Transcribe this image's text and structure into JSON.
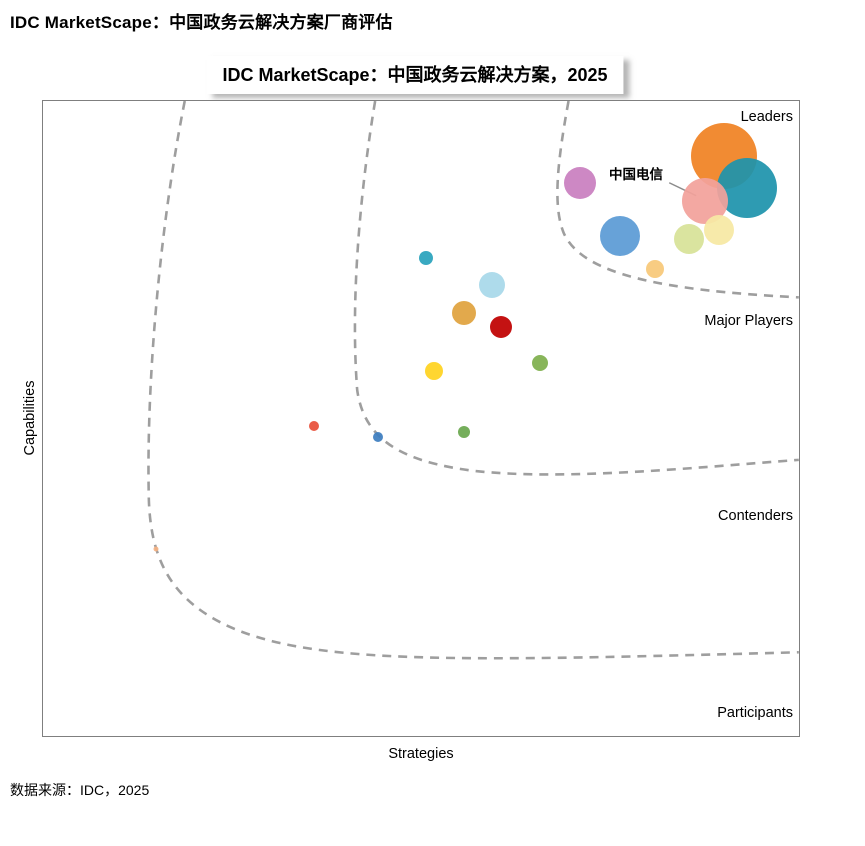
{
  "header": {
    "title": "IDC MarketScape：中国政务云解决方案厂商评估"
  },
  "footer": {
    "source": "数据来源：IDC，2025"
  },
  "chart_data": {
    "type": "scatter",
    "title": "IDC MarketScape：中国政务云解决方案，2025",
    "xlabel": "Strategies",
    "ylabel": "Capabilities",
    "xlim": [
      0,
      100
    ],
    "ylim": [
      0,
      100
    ],
    "grid": false,
    "regions": [
      "Leaders",
      "Major Players",
      "Contenders",
      "Participants"
    ],
    "boundary_color": "#9e9e9e",
    "points": [
      {
        "x": 90.1,
        "y": 91.4,
        "r": 33,
        "color": "#F08223"
      },
      {
        "x": 93.1,
        "y": 86.3,
        "r": 30,
        "color": "#1E93AC"
      },
      {
        "label": "中国电信",
        "x": 87.5,
        "y": 84.3,
        "r": 23,
        "color": "#F2A19B"
      },
      {
        "x": 85.5,
        "y": 78.3,
        "r": 15,
        "color": "#D7E298"
      },
      {
        "x": 89.4,
        "y": 79.7,
        "r": 15,
        "color": "#F6E8A4"
      },
      {
        "x": 71.0,
        "y": 87.1,
        "r": 16,
        "color": "#C97FC0"
      },
      {
        "x": 76.3,
        "y": 78.8,
        "r": 20,
        "color": "#5B9BD5"
      },
      {
        "x": 80.9,
        "y": 73.6,
        "r": 9,
        "color": "#F8C878"
      },
      {
        "x": 50.7,
        "y": 75.2,
        "r": 7,
        "color": "#2AA3BC"
      },
      {
        "x": 59.4,
        "y": 71.0,
        "r": 13,
        "color": "#A8D8EA"
      },
      {
        "x": 55.7,
        "y": 66.6,
        "r": 12,
        "color": "#E0A23E"
      },
      {
        "x": 60.6,
        "y": 64.4,
        "r": 11,
        "color": "#C00000"
      },
      {
        "x": 65.7,
        "y": 58.7,
        "r": 8,
        "color": "#7FAF4E"
      },
      {
        "x": 51.7,
        "y": 57.5,
        "r": 9,
        "color": "#FFD320"
      },
      {
        "x": 35.8,
        "y": 48.8,
        "r": 5,
        "color": "#E8503A"
      },
      {
        "x": 44.3,
        "y": 47.1,
        "r": 5,
        "color": "#3D7EBF"
      },
      {
        "x": 55.7,
        "y": 47.9,
        "r": 6,
        "color": "#6BA84F"
      },
      {
        "x": 15.0,
        "y": 29.5,
        "r": 2.5,
        "color": "#F4B183"
      }
    ]
  }
}
